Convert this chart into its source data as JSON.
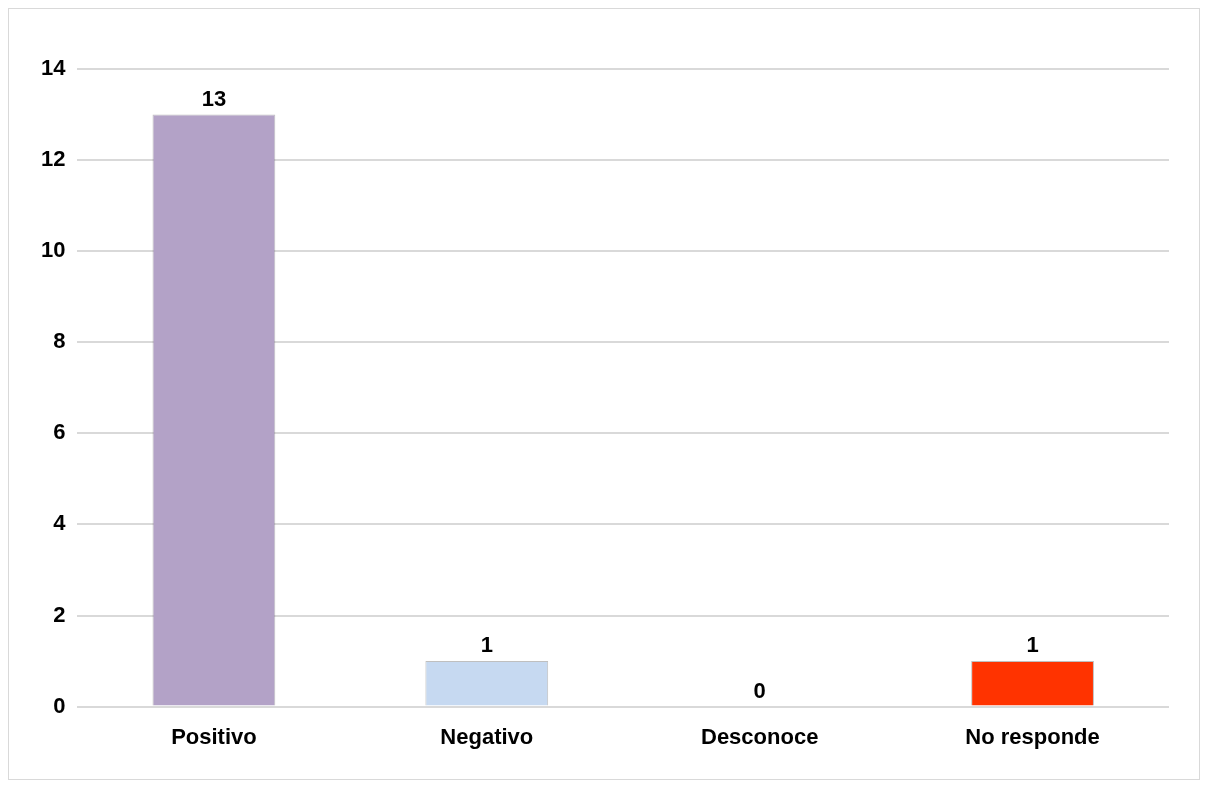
{
  "chart_data": {
    "type": "bar",
    "categories": [
      "Positivo",
      "Negativo",
      "Desconoce",
      "No responde"
    ],
    "values": [
      13,
      1,
      0,
      1
    ],
    "colors": [
      "#b3a2c7",
      "#c6d9f1",
      "#00a050",
      "#ff3300"
    ],
    "ylim": [
      0,
      14
    ],
    "yticks": [
      0,
      2,
      4,
      6,
      8,
      10,
      12,
      14
    ],
    "grid": "y",
    "data_labels": true
  }
}
